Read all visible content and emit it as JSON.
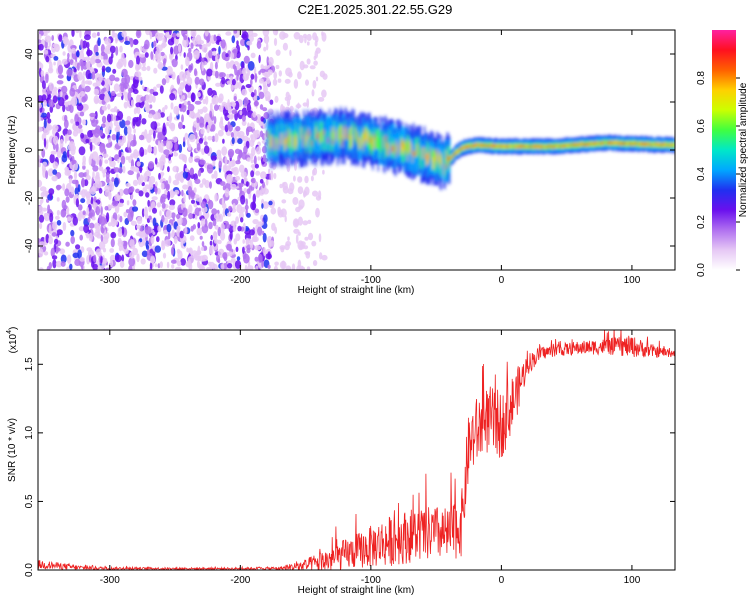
{
  "title": "C2E1.2025.301.22.55.G29",
  "chart_data": [
    {
      "type": "heatmap",
      "name": "spectrogram",
      "xlabel": "Height of straight line (km)",
      "ylabel": "Frequency (Hz)",
      "xlim": [
        -355,
        133
      ],
      "ylim": [
        -50,
        50
      ],
      "xticks": [
        -300,
        -200,
        -100,
        0,
        100
      ],
      "yticks": [
        -40,
        -20,
        0,
        20,
        40
      ],
      "colorbar": {
        "label": "Normalized spectral amplitude",
        "range": [
          0,
          1
        ],
        "ticks": [
          "0.0",
          "0.2",
          "0.4",
          "0.6",
          "0.8"
        ],
        "tick_values": [
          0,
          0.2,
          0.4,
          0.6,
          0.8
        ],
        "colors": [
          "#ffffff",
          "#e6c8f5",
          "#b070f0",
          "#6a10ee",
          "#2030f0",
          "#00a8ff",
          "#00e8c8",
          "#40ff40",
          "#ccff00",
          "#ffd000",
          "#ff6000",
          "#ff1020",
          "#ff20a0"
        ]
      },
      "ridge": {
        "description_points_x": [
          -180,
          -150,
          -120,
          -100,
          -80,
          -60,
          -50,
          -45,
          -40,
          -35,
          -30,
          -20,
          0,
          40,
          80,
          133
        ],
        "description_points_y": [
          4,
          5,
          6,
          4,
          1,
          -2,
          -4,
          -6,
          -4,
          -1,
          1,
          2,
          1.5,
          1.5,
          3,
          2
        ],
        "noise_region_x": [
          -355,
          -175
        ]
      }
    },
    {
      "type": "line",
      "name": "snr",
      "xlabel": "Height of straight line (km)",
      "ylabel": "SNR (10 * v/v)",
      "yscale_label": "(x10",
      "yscale_exp": "4",
      "xlim": [
        -355,
        133
      ],
      "ylim": [
        0,
        17500
      ],
      "xticks": [
        -300,
        -200,
        -100,
        0,
        100
      ],
      "yticks": [
        0,
        5000,
        10000,
        15000
      ],
      "ytick_labels": [
        "0.0",
        "0.5",
        "1.0",
        "1.5"
      ],
      "color": "#ee2222",
      "envelope_x": [
        -355,
        -340,
        -320,
        -300,
        -250,
        -200,
        -170,
        -150,
        -130,
        -110,
        -90,
        -70,
        -50,
        -40,
        -30,
        -28,
        -25,
        -20,
        -10,
        0,
        10,
        20,
        30,
        40,
        60,
        80,
        100,
        120,
        133
      ],
      "envelope_mean": [
        400,
        300,
        150,
        120,
        100,
        100,
        120,
        300,
        800,
        1400,
        2000,
        2500,
        2700,
        2500,
        3500,
        6000,
        9000,
        10000,
        11000,
        10500,
        12500,
        15000,
        15800,
        16000,
        16200,
        16300,
        16300,
        15900,
        15800
      ],
      "envelope_noise": [
        350,
        250,
        150,
        100,
        80,
        80,
        120,
        500,
        1000,
        1300,
        1800,
        2000,
        2000,
        2000,
        2500,
        2500,
        2500,
        2500,
        2500,
        2500,
        2000,
        800,
        500,
        450,
        500,
        600,
        800,
        400,
        300
      ]
    }
  ]
}
